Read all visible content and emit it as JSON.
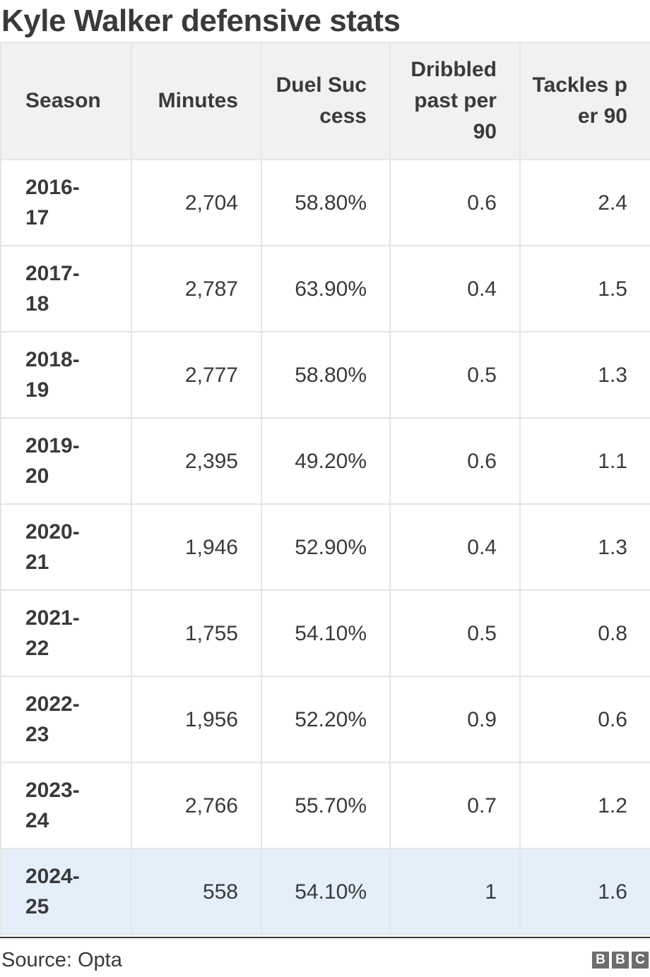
{
  "title": "Kyle Walker defensive stats",
  "source": "Source: Opta",
  "logo": [
    "B",
    "B",
    "C"
  ],
  "colors": {
    "header_bg": "#f1f1f1",
    "highlight_row_bg": "#e4eff9",
    "text": "#3a3a3a"
  },
  "chart_data": {
    "type": "table",
    "title": "Kyle Walker defensive stats",
    "columns": [
      "Season",
      "Minutes",
      "Duel Success",
      "Dribbled past per 90",
      "Tackles per 90"
    ],
    "rows": [
      [
        "2016-17",
        "2,704",
        "58.80%",
        "0.6",
        "2.4"
      ],
      [
        "2017-18",
        "2,787",
        "63.90%",
        "0.4",
        "1.5"
      ],
      [
        "2018-19",
        "2,777",
        "58.80%",
        "0.5",
        "1.3"
      ],
      [
        "2019-20",
        "2,395",
        "49.20%",
        "0.6",
        "1.1"
      ],
      [
        "2020-21",
        "1,946",
        "52.90%",
        "0.4",
        "1.3"
      ],
      [
        "2021-22",
        "1,755",
        "54.10%",
        "0.5",
        "0.8"
      ],
      [
        "2022-23",
        "1,956",
        "52.20%",
        "0.9",
        "0.6"
      ],
      [
        "2023-24",
        "2,766",
        "55.70%",
        "0.7",
        "1.2"
      ],
      [
        "2024-25",
        "558",
        "54.10%",
        "1",
        "1.6"
      ]
    ],
    "highlighted_row": "2024-25"
  }
}
